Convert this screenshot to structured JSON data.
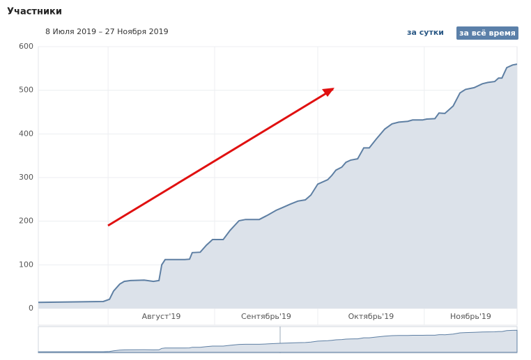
{
  "header": {
    "title": "Участники",
    "date_range": "8 Июля 2019 – 27 Ноября 2019",
    "buttons": [
      "за сутки",
      "за всё время"
    ]
  },
  "chart_data": {
    "type": "area",
    "x": [
      3.7,
      22.6,
      24.4,
      25.6,
      27.4,
      28.7,
      30.5,
      34.5,
      37.2,
      38.8,
      39.6,
      40.6,
      46.3,
      47.7,
      48.5,
      50.8,
      52.6,
      54.4,
      57.5,
      59.5,
      62.1,
      64,
      68,
      70.7,
      72.9,
      74.7,
      77,
      79.2,
      81.4,
      83,
      85,
      87.9,
      89.1,
      90.3,
      92,
      93.2,
      94.6,
      96.6,
      98.4,
      100,
      102,
      104.5,
      106.6,
      108.6,
      111.2,
      112.6,
      115.5,
      116.7,
      119.1,
      120.3,
      122,
      124.4,
      126.4,
      128,
      130.5,
      132.9,
      134.5,
      136.5,
      137.6,
      138.6,
      140,
      141.7,
      143
    ],
    "values": [
      14,
      16,
      21,
      40,
      56,
      62,
      64,
      65,
      62,
      64,
      100,
      112,
      112,
      113,
      128,
      129,
      145,
      158,
      158,
      179,
      201,
      204,
      204,
      215,
      225,
      231,
      239,
      246,
      249,
      260,
      285,
      295,
      305,
      317,
      324,
      335,
      340,
      343,
      368,
      368,
      388,
      411,
      423,
      427,
      429,
      432,
      432,
      434,
      435,
      448,
      447,
      464,
      494,
      502,
      506,
      515,
      518,
      520,
      528,
      528,
      552,
      558,
      560
    ],
    "color": "#5e7fa3",
    "fill": "#dce2ea",
    "xlim": [
      3.7,
      143
    ],
    "ylim": [
      0,
      600
    ],
    "xticks": [
      {
        "value": 24,
        "label": "Август'19"
      },
      {
        "value": 55,
        "label": "Сентябрь'19"
      },
      {
        "value": 85,
        "label": "Октябрь'19"
      },
      {
        "value": 116,
        "label": "Ноябрь'19"
      }
    ],
    "yticks": [
      0,
      100,
      200,
      300,
      400,
      500,
      600
    ],
    "grid": true
  }
}
